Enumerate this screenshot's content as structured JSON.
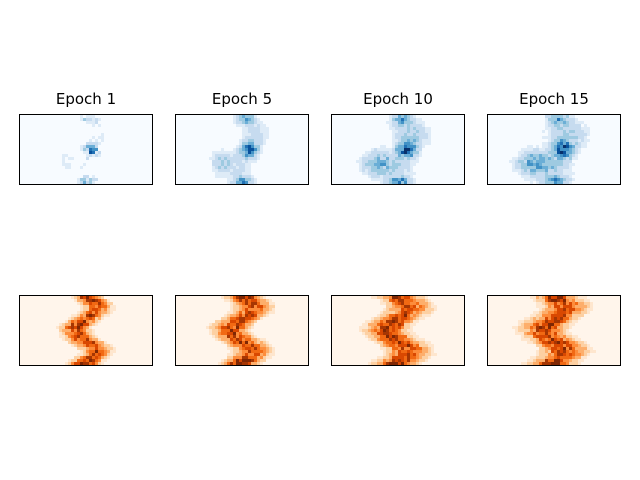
{
  "chart_data": {
    "type": "heatmap",
    "layout": "2 rows x 4 columns",
    "titles": [
      "Epoch 1",
      "Epoch 5",
      "Epoch 10",
      "Epoch 15"
    ],
    "rows": [
      {
        "colormap": "Blues",
        "description_colors": [
          "#f7fbff",
          "#08306b"
        ]
      },
      {
        "colormap": "Oranges",
        "description_colors": [
          "#fff5eb",
          "#7f2704"
        ]
      }
    ],
    "axes_ticks": "none",
    "grid": false,
    "legend": "none",
    "spread": [
      0.25,
      0.55,
      0.8,
      0.9
    ]
  },
  "colors": {
    "blues": [
      "#f7fbff",
      "#deebf7",
      "#c6dbef",
      "#9ecae1",
      "#6baed6",
      "#4292c6",
      "#2171b5",
      "#08519c",
      "#08306b"
    ],
    "oranges": [
      "#fff5eb",
      "#fee6ce",
      "#fdd0a2",
      "#fdae6b",
      "#fd8d3c",
      "#f16913",
      "#d94801",
      "#a63603",
      "#7f2704"
    ]
  }
}
